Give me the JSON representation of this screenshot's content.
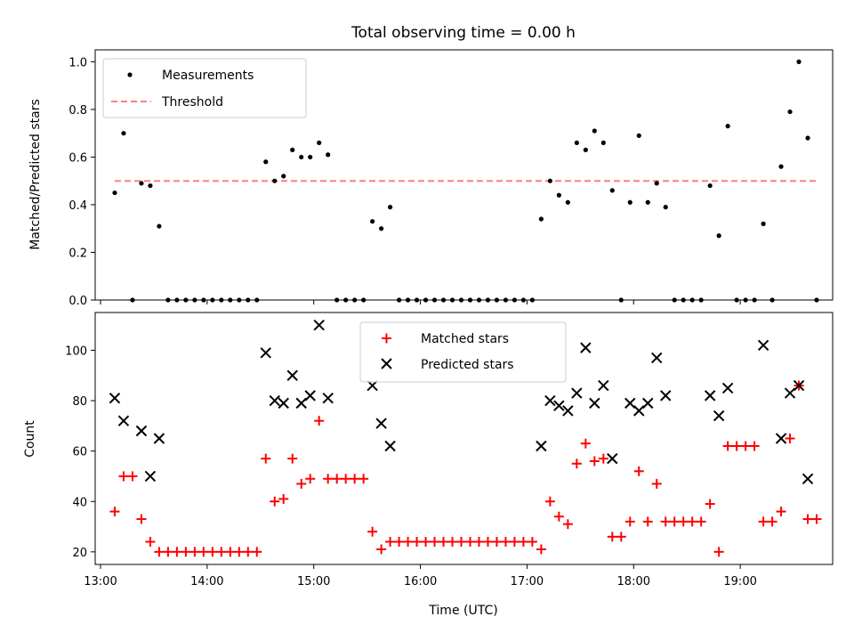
{
  "chart_data": [
    {
      "type": "scatter",
      "panel": "top",
      "title": "Total observing time = 0.00 h",
      "xlabel": "",
      "ylabel": "Matched/Predicted stars",
      "ylim": [
        0,
        1.05
      ],
      "yticks": [
        0.0,
        0.2,
        0.4,
        0.6,
        0.8,
        1.0
      ],
      "ytick_labels": [
        "0.0",
        "0.2",
        "0.4",
        "0.6",
        "0.8",
        "1.0"
      ],
      "legend": "upper-left",
      "series": [
        {
          "name": "Measurements",
          "marker": "dot",
          "color": "#000000",
          "points": [
            [
              "13:08",
              0.45
            ],
            [
              "13:13",
              0.7
            ],
            [
              "13:18",
              0.0
            ],
            [
              "13:23",
              0.49
            ],
            [
              "13:28",
              0.48
            ],
            [
              "13:33",
              0.31
            ],
            [
              "13:38",
              0.0
            ],
            [
              "13:43",
              0.0
            ],
            [
              "13:48",
              0.0
            ],
            [
              "13:53",
              0.0
            ],
            [
              "13:58",
              0.0
            ],
            [
              "14:03",
              0.0
            ],
            [
              "14:08",
              0.0
            ],
            [
              "14:13",
              0.0
            ],
            [
              "14:18",
              0.0
            ],
            [
              "14:23",
              0.0
            ],
            [
              "14:28",
              0.0
            ],
            [
              "14:33",
              0.58
            ],
            [
              "14:38",
              0.5
            ],
            [
              "14:43",
              0.52
            ],
            [
              "14:48",
              0.63
            ],
            [
              "14:53",
              0.6
            ],
            [
              "14:58",
              0.6
            ],
            [
              "15:03",
              0.66
            ],
            [
              "15:08",
              0.61
            ],
            [
              "15:13",
              0.0
            ],
            [
              "15:18",
              0.0
            ],
            [
              "15:23",
              0.0
            ],
            [
              "15:28",
              0.0
            ],
            [
              "15:33",
              0.33
            ],
            [
              "15:38",
              0.3
            ],
            [
              "15:43",
              0.39
            ],
            [
              "15:48",
              0.0
            ],
            [
              "15:53",
              0.0
            ],
            [
              "15:58",
              0.0
            ],
            [
              "16:03",
              0.0
            ],
            [
              "16:08",
              0.0
            ],
            [
              "16:13",
              0.0
            ],
            [
              "16:18",
              0.0
            ],
            [
              "16:23",
              0.0
            ],
            [
              "16:28",
              0.0
            ],
            [
              "16:33",
              0.0
            ],
            [
              "16:38",
              0.0
            ],
            [
              "16:43",
              0.0
            ],
            [
              "16:48",
              0.0
            ],
            [
              "16:53",
              0.0
            ],
            [
              "16:58",
              0.0
            ],
            [
              "17:03",
              0.0
            ],
            [
              "17:08",
              0.34
            ],
            [
              "17:13",
              0.5
            ],
            [
              "17:18",
              0.44
            ],
            [
              "17:23",
              0.41
            ],
            [
              "17:28",
              0.66
            ],
            [
              "17:33",
              0.63
            ],
            [
              "17:38",
              0.71
            ],
            [
              "17:43",
              0.66
            ],
            [
              "17:48",
              0.46
            ],
            [
              "17:53",
              0.0
            ],
            [
              "17:58",
              0.41
            ],
            [
              "18:03",
              0.69
            ],
            [
              "18:08",
              0.41
            ],
            [
              "18:13",
              0.49
            ],
            [
              "18:18",
              0.39
            ],
            [
              "18:23",
              0.0
            ],
            [
              "18:28",
              0.0
            ],
            [
              "18:33",
              0.0
            ],
            [
              "18:38",
              0.0
            ],
            [
              "18:43",
              0.48
            ],
            [
              "18:48",
              0.27
            ],
            [
              "18:53",
              0.73
            ],
            [
              "18:58",
              0.0
            ],
            [
              "19:03",
              0.0
            ],
            [
              "19:08",
              0.0
            ],
            [
              "19:13",
              0.32
            ],
            [
              "19:18",
              0.0
            ],
            [
              "19:23",
              0.56
            ],
            [
              "19:28",
              0.79
            ],
            [
              "19:33",
              1.0
            ],
            [
              "19:38",
              0.68
            ],
            [
              "19:43",
              0.0
            ]
          ]
        },
        {
          "name": "Threshold",
          "type": "line",
          "style": "dashed",
          "color": "#ff7f7f",
          "points": [
            [
              "13:08",
              0.5
            ],
            [
              "19:43",
              0.5
            ]
          ]
        }
      ]
    },
    {
      "type": "scatter",
      "panel": "bottom",
      "title": "",
      "xlabel": "Time (UTC)",
      "ylabel": "Count",
      "ylim": [
        15,
        115
      ],
      "yticks": [
        20,
        40,
        60,
        80,
        100
      ],
      "ytick_labels": [
        "20",
        "40",
        "60",
        "80",
        "100"
      ],
      "xlim": [
        "12:57",
        "19:52"
      ],
      "xticks": [
        "13:00",
        "14:00",
        "15:00",
        "16:00",
        "17:00",
        "18:00",
        "19:00"
      ],
      "legend": "upper-center",
      "series": [
        {
          "name": "Matched stars",
          "marker": "plus",
          "color": "#ff0000",
          "points": [
            [
              "13:08",
              36
            ],
            [
              "13:13",
              50
            ],
            [
              "13:18",
              50
            ],
            [
              "13:23",
              33
            ],
            [
              "13:28",
              24
            ],
            [
              "13:33",
              20
            ],
            [
              "13:38",
              20
            ],
            [
              "13:43",
              20
            ],
            [
              "13:48",
              20
            ],
            [
              "13:53",
              20
            ],
            [
              "13:58",
              20
            ],
            [
              "14:03",
              20
            ],
            [
              "14:08",
              20
            ],
            [
              "14:13",
              20
            ],
            [
              "14:18",
              20
            ],
            [
              "14:23",
              20
            ],
            [
              "14:28",
              20
            ],
            [
              "14:33",
              57
            ],
            [
              "14:38",
              40
            ],
            [
              "14:43",
              41
            ],
            [
              "14:48",
              57
            ],
            [
              "14:53",
              47
            ],
            [
              "14:58",
              49
            ],
            [
              "15:03",
              72
            ],
            [
              "15:08",
              49
            ],
            [
              "15:13",
              49
            ],
            [
              "15:18",
              49
            ],
            [
              "15:23",
              49
            ],
            [
              "15:28",
              49
            ],
            [
              "15:33",
              28
            ],
            [
              "15:38",
              21
            ],
            [
              "15:43",
              24
            ],
            [
              "15:48",
              24
            ],
            [
              "15:53",
              24
            ],
            [
              "15:58",
              24
            ],
            [
              "16:03",
              24
            ],
            [
              "16:08",
              24
            ],
            [
              "16:13",
              24
            ],
            [
              "16:18",
              24
            ],
            [
              "16:23",
              24
            ],
            [
              "16:28",
              24
            ],
            [
              "16:33",
              24
            ],
            [
              "16:38",
              24
            ],
            [
              "16:43",
              24
            ],
            [
              "16:48",
              24
            ],
            [
              "16:53",
              24
            ],
            [
              "16:58",
              24
            ],
            [
              "17:03",
              24
            ],
            [
              "17:08",
              21
            ],
            [
              "17:13",
              40
            ],
            [
              "17:18",
              34
            ],
            [
              "17:23",
              31
            ],
            [
              "17:28",
              55
            ],
            [
              "17:33",
              63
            ],
            [
              "17:38",
              56
            ],
            [
              "17:43",
              57
            ],
            [
              "17:48",
              26
            ],
            [
              "17:53",
              26
            ],
            [
              "17:58",
              32
            ],
            [
              "18:03",
              52
            ],
            [
              "18:08",
              32
            ],
            [
              "18:13",
              47
            ],
            [
              "18:18",
              32
            ],
            [
              "18:23",
              32
            ],
            [
              "18:28",
              32
            ],
            [
              "18:33",
              32
            ],
            [
              "18:38",
              32
            ],
            [
              "18:43",
              39
            ],
            [
              "18:48",
              20
            ],
            [
              "18:53",
              62
            ],
            [
              "18:58",
              62
            ],
            [
              "19:03",
              62
            ],
            [
              "19:08",
              62
            ],
            [
              "19:13",
              32
            ],
            [
              "19:18",
              32
            ],
            [
              "19:23",
              36
            ],
            [
              "19:28",
              65
            ],
            [
              "19:33",
              86
            ],
            [
              "19:38",
              33
            ],
            [
              "19:43",
              33
            ]
          ]
        },
        {
          "name": "Predicted stars",
          "marker": "x",
          "color": "#000000",
          "points": [
            [
              "13:08",
              81
            ],
            [
              "13:13",
              72
            ],
            [
              "13:23",
              68
            ],
            [
              "13:28",
              50
            ],
            [
              "13:33",
              65
            ],
            [
              "14:33",
              99
            ],
            [
              "14:38",
              80
            ],
            [
              "14:43",
              79
            ],
            [
              "14:48",
              90
            ],
            [
              "14:53",
              79
            ],
            [
              "14:58",
              82
            ],
            [
              "15:03",
              110
            ],
            [
              "15:08",
              81
            ],
            [
              "15:33",
              86
            ],
            [
              "15:38",
              71
            ],
            [
              "15:43",
              62
            ],
            [
              "17:08",
              62
            ],
            [
              "17:13",
              80
            ],
            [
              "17:18",
              78
            ],
            [
              "17:23",
              76
            ],
            [
              "17:28",
              83
            ],
            [
              "17:33",
              101
            ],
            [
              "17:38",
              79
            ],
            [
              "17:43",
              86
            ],
            [
              "17:48",
              57
            ],
            [
              "17:58",
              79
            ],
            [
              "18:03",
              76
            ],
            [
              "18:08",
              79
            ],
            [
              "18:13",
              97
            ],
            [
              "18:18",
              82
            ],
            [
              "18:43",
              82
            ],
            [
              "18:48",
              74
            ],
            [
              "18:53",
              85
            ],
            [
              "19:13",
              102
            ],
            [
              "19:23",
              65
            ],
            [
              "19:28",
              83
            ],
            [
              "19:33",
              86
            ],
            [
              "19:38",
              49
            ]
          ]
        }
      ]
    }
  ]
}
